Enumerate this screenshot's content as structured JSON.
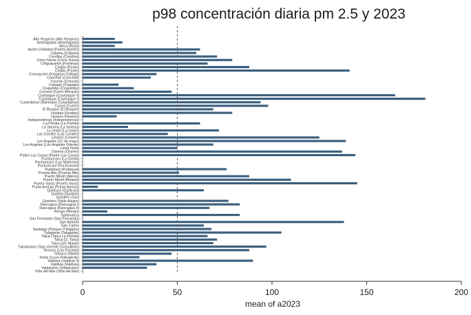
{
  "chart_data": {
    "type": "bar",
    "orientation": "horizontal",
    "title": "p98 concentración diaria pm 2.5  y 2023",
    "xlabel": "mean of a2023",
    "xlim": [
      0,
      200
    ],
    "xticks": [
      0,
      50,
      100,
      150,
      200
    ],
    "reference_line": 50,
    "bar_color": "#3b5f7e",
    "categories": [
      "Alto Hospicio (Alto Hospicio)",
      "Antofagasta (Antofagasta)",
      "Arica (Arica)",
      "Aysén (Vialidad (Puerto Aysén))",
      "Calama (Calama)",
      "Cerrillos (Cerrillos)",
      "Cerro Navia (Cerro Navia)",
      "Chiguayante (Punteras)",
      "Chillán (Purén)",
      "Chillán (Purén)",
      "Concepción (Kingston College)",
      "Conchalí (Conchalí)",
      "Concón (Concón)",
      "Copiapó (Copiapó)",
      "Coquimbo (Coquimbo)",
      "Coronel (Cerro Merquín)",
      "Coyhaique (Coyhaique II)",
      "Coyhaique (Coyhaique I)",
      "Curanilahue (Balneario Curanilahue)",
      "Curicó (Curicó)",
      "El Bosque (El Bosque)",
      "Hualqui (Hualqui)",
      "Huasco (Huasco)",
      "Independencia (Independencia)",
      "La Florida (La Florida)",
      "La Serena (La Serena)",
      "La Unión (La Unión)",
      "Las Condes (Las Condes)",
      "Linares (Linares)",
      "Los Angeles (21 de mayo)",
      "Los Angeles (Los Angeles Oriente)",
      "Lenta Norte",
      "Osorno (Osorno)",
      "Padre Las Casas (Padre Las Casas)",
      "Puchuncaví (La Greda)",
      "Puchuncaví (Los Maitenes)",
      "Puchuncaví (Puchuncaví)",
      "Pudahuel (Pudahuel)",
      "Puente Alto (Puente Alto)",
      "Puerto Montt (Alerce)",
      "Puerto Montt (Mirasol)",
      "Puerto Varas (Puerto Varas)",
      "Punta Arenas (Punta Arenas)",
      "Quilicura (Quilicura)",
      "Quillota (Quillota)",
      "Quintero (Sur)",
      "Quintero (Valle Alegre)",
      "Rancagua (Rancagua I)",
      "Rancagua (Rancagua II)",
      "Rengo (Rengo)",
      "Salamanca",
      "San Fernando (San Fernando)",
      "San Antonio",
      "San Carlos",
      "Santiago (Parque O'Higgins)",
      "Talagante (Talagante)",
      "Talca (Talca La Florida)",
      "Talca (U. Talca)",
      "Talca (UC Maule)",
      "Talcahuano (San Vicente Consultorio)",
      "Temuco (Las Encinas)",
      "Temuco (Nielol)",
      "Tomé (Liceo Polivalente)",
      "Valdivia (Valdivia II)",
      "Valdivia (Valdivia)",
      "Valparaíso (Valparaíso)",
      "Viña del Mar (Viña del Mar)"
    ],
    "values": [
      17,
      21,
      17,
      62,
      60,
      71,
      79,
      66,
      88,
      141,
      39,
      36,
      null,
      19,
      27,
      47,
      165,
      181,
      94,
      98,
      69,
      79,
      18,
      null,
      62,
      24,
      72,
      45,
      125,
      139,
      69,
      50,
      137,
      144,
      null,
      null,
      null,
      76,
      51,
      88,
      110,
      145,
      8,
      64,
      null,
      null,
      77,
      83,
      67,
      13,
      83,
      null,
      138,
      64,
      68,
      105,
      66,
      71,
      69,
      97,
      88,
      47,
      30,
      90,
      39,
      34,
      null
    ]
  }
}
